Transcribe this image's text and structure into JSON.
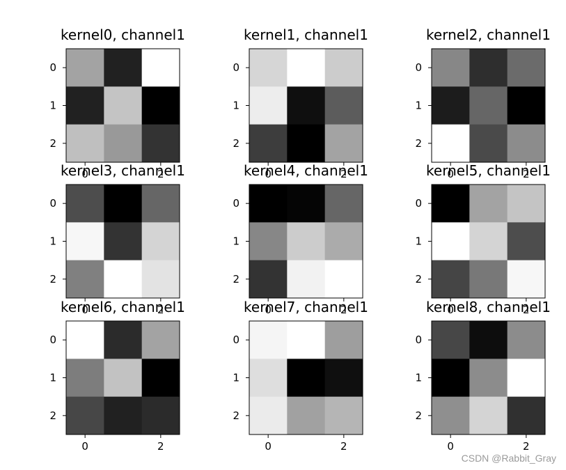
{
  "chart_data": {
    "type": "heatmap",
    "colormap": "gray",
    "value_range": [
      0,
      1
    ],
    "grid": false,
    "layout": "3x3 subplots",
    "subplots": [
      {
        "title": "kernel0, channel1",
        "xticks": [
          "0",
          "2"
        ],
        "yticks": [
          "0",
          "1",
          "2"
        ],
        "values": [
          [
            0.64,
            0.13,
            1.0
          ],
          [
            0.13,
            0.77,
            0.0
          ],
          [
            0.75,
            0.6,
            0.2
          ]
        ]
      },
      {
        "title": "kernel1, channel1",
        "xticks": [
          "0",
          "2"
        ],
        "yticks": [
          "0",
          "1",
          "2"
        ],
        "values": [
          [
            0.84,
            1.0,
            0.8
          ],
          [
            0.93,
            0.06,
            0.36
          ],
          [
            0.24,
            0.0,
            0.64
          ]
        ]
      },
      {
        "title": "kernel2, channel1",
        "xticks": [
          "0",
          "2"
        ],
        "yticks": [
          "0",
          "1",
          "2"
        ],
        "values": [
          [
            0.53,
            0.18,
            0.42
          ],
          [
            0.11,
            0.4,
            0.0
          ],
          [
            1.0,
            0.29,
            0.55
          ]
        ]
      },
      {
        "title": "kernel3, channel1",
        "xticks": [
          "0",
          "2"
        ],
        "yticks": [
          "0",
          "1",
          "2"
        ],
        "values": [
          [
            0.3,
            0.0,
            0.4
          ],
          [
            0.97,
            0.2,
            0.83
          ],
          [
            0.5,
            1.0,
            0.89
          ]
        ]
      },
      {
        "title": "kernel4, channel1",
        "xticks": [
          "0",
          "2"
        ],
        "yticks": [
          "0",
          "1",
          "2"
        ],
        "values": [
          [
            0.0,
            0.02,
            0.4
          ],
          [
            0.53,
            0.8,
            0.67
          ],
          [
            0.2,
            0.95,
            1.0
          ]
        ]
      },
      {
        "title": "kernel5, channel1",
        "xticks": [
          "0",
          "2"
        ],
        "yticks": [
          "0",
          "1",
          "2"
        ],
        "values": [
          [
            0.0,
            0.64,
            0.77
          ],
          [
            1.0,
            0.83,
            0.3
          ],
          [
            0.27,
            0.47,
            0.97
          ]
        ]
      },
      {
        "title": "kernel6, channel1",
        "xticks": [
          "0",
          "2"
        ],
        "yticks": [
          "0",
          "1",
          "2"
        ],
        "values": [
          [
            1.0,
            0.17,
            0.64
          ],
          [
            0.49,
            0.76,
            0.0
          ],
          [
            0.28,
            0.13,
            0.17
          ]
        ]
      },
      {
        "title": "kernel7, channel1",
        "xticks": [
          "0",
          "2"
        ],
        "yticks": [
          "0",
          "1",
          "2"
        ],
        "values": [
          [
            0.96,
            1.0,
            0.62
          ],
          [
            0.87,
            0.0,
            0.06
          ],
          [
            0.92,
            0.63,
            0.71
          ]
        ]
      },
      {
        "title": "kernel8, channel1",
        "xticks": [
          "0",
          "2"
        ],
        "yticks": [
          "0",
          "1",
          "2"
        ],
        "values": [
          [
            0.28,
            0.05,
            0.55
          ],
          [
            0.0,
            0.55,
            1.0
          ],
          [
            0.56,
            0.83,
            0.19
          ]
        ]
      }
    ]
  },
  "watermark": "CSDN @Rabbit_Gray"
}
